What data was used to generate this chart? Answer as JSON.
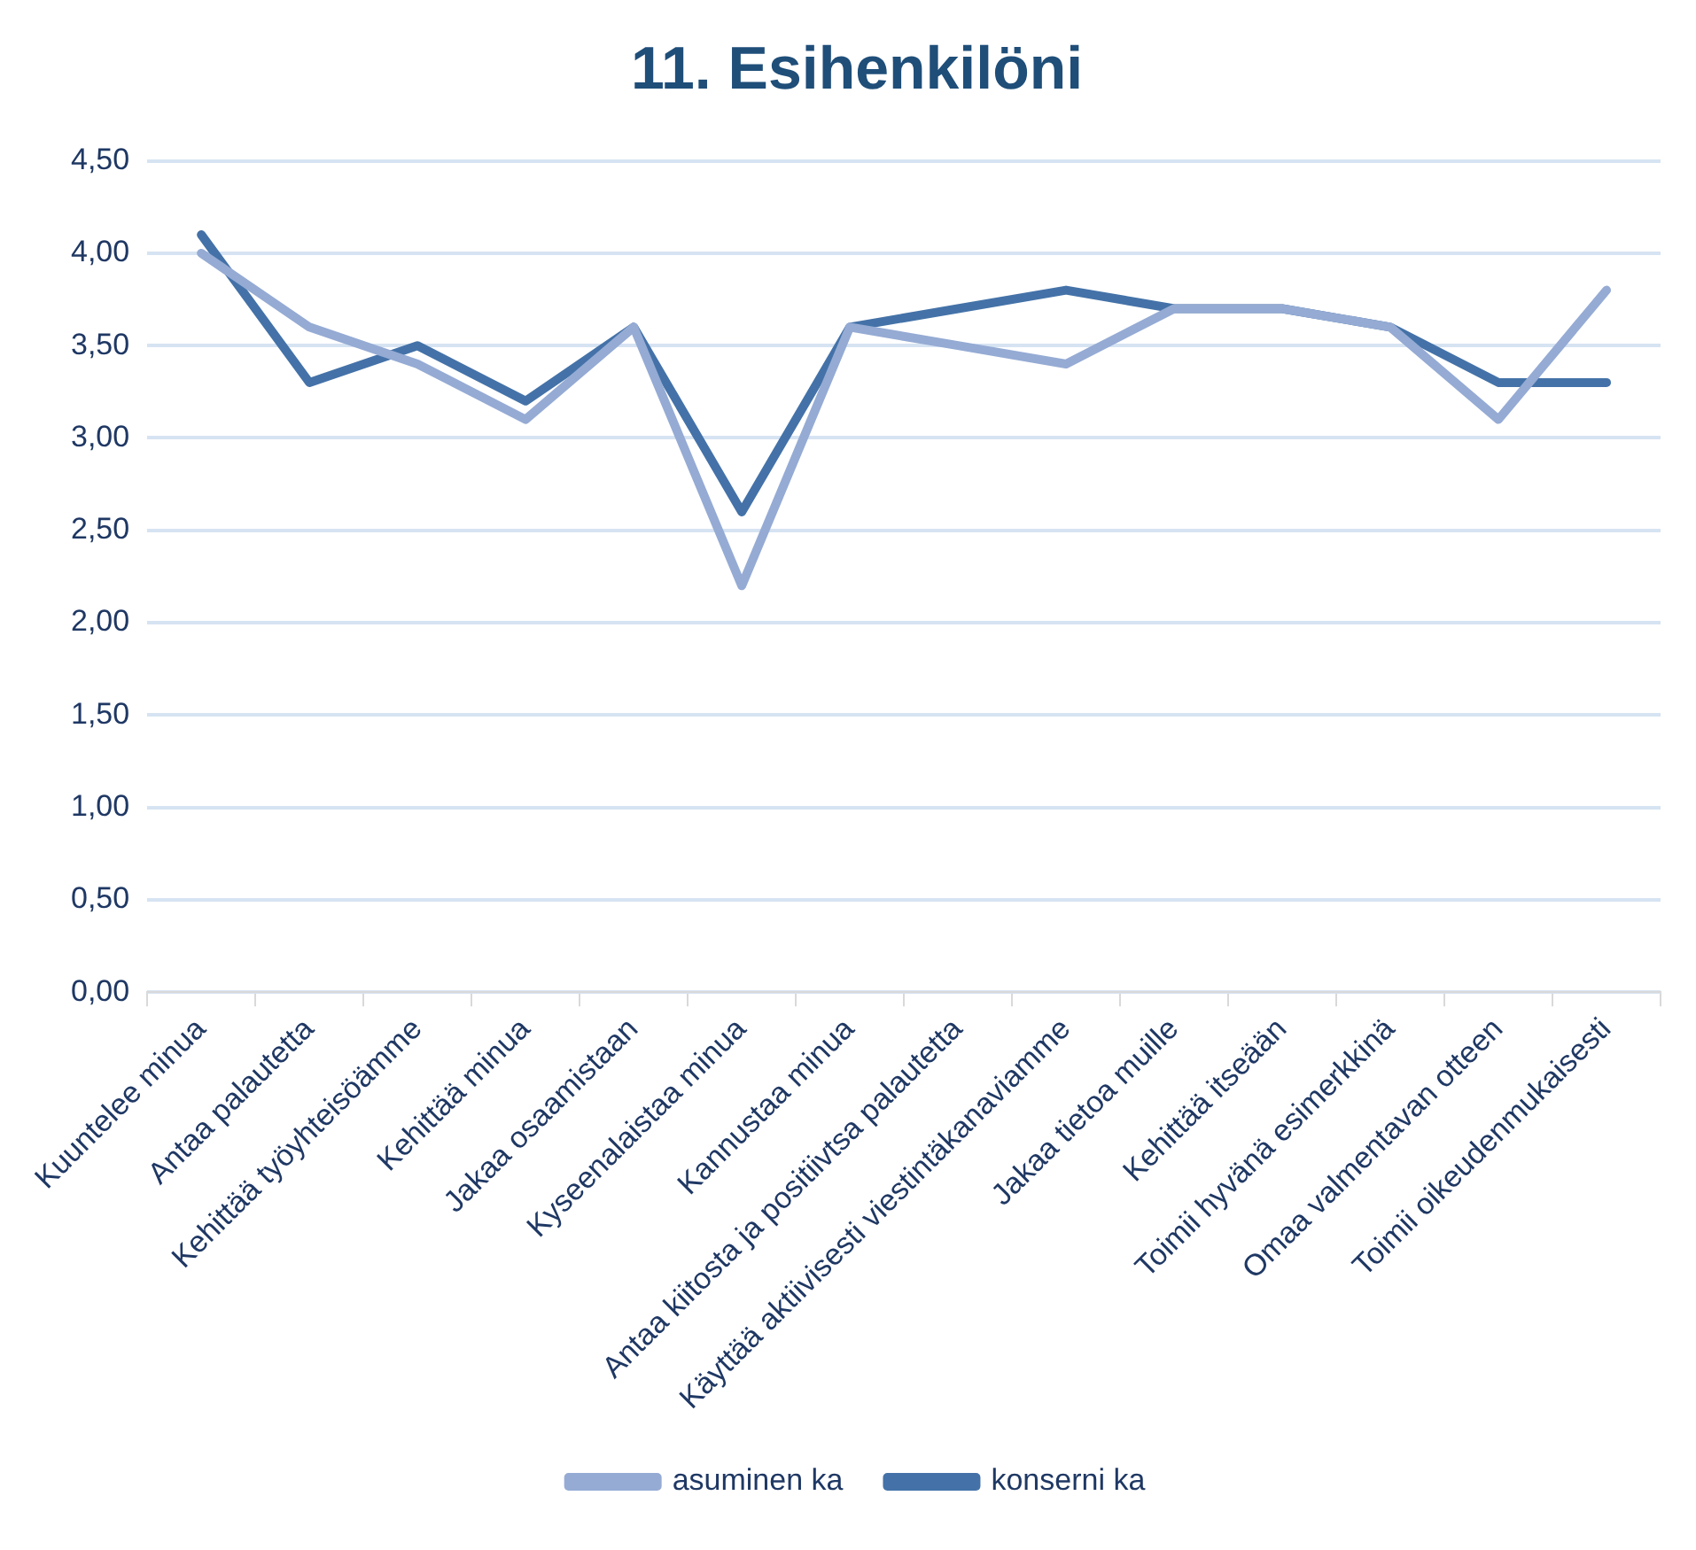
{
  "chart_data": {
    "type": "line",
    "title": "11. Esihenkilöni",
    "categories": [
      "Kuuntelee minua",
      "Antaa palautetta",
      "Kehittää työyhteisöämme",
      "Kehittää minua",
      "Jakaa osaamistaan",
      "Kyseenalaistaa minua",
      "Kannustaa minua",
      "Antaa kiitosta ja positiivtsa palautetta",
      "Käyttää aktiivisesti viestintäkanaviamme",
      "Jakaa tietoa muille",
      "Kehittää itseään",
      "Toimii hyvänä esimerkkinä",
      "Omaa valmentavan otteen",
      "Toimii oikeudenmukaisesti"
    ],
    "series": [
      {
        "name": "asuminen ka",
        "color": "#95abd4",
        "values": [
          4.0,
          3.6,
          3.4,
          3.1,
          3.6,
          2.2,
          3.6,
          3.5,
          3.4,
          3.7,
          3.7,
          3.6,
          3.1,
          3.8
        ]
      },
      {
        "name": "konserni ka",
        "color": "#4472a8",
        "values": [
          4.1,
          3.3,
          3.5,
          3.2,
          3.6,
          2.6,
          3.6,
          3.7,
          3.8,
          3.7,
          3.7,
          3.6,
          3.3,
          3.3
        ]
      }
    ],
    "ylim": [
      0,
      4.5
    ],
    "yticks": [
      {
        "value": 0,
        "label": "0,00"
      },
      {
        "value": 0.5,
        "label": "0,50"
      },
      {
        "value": 1,
        "label": "1,00"
      },
      {
        "value": 1.5,
        "label": "1,50"
      },
      {
        "value": 2,
        "label": "2,00"
      },
      {
        "value": 2.5,
        "label": "2,50"
      },
      {
        "value": 3,
        "label": "3,00"
      },
      {
        "value": 3.5,
        "label": "3,50"
      },
      {
        "value": 4,
        "label": "4,00"
      },
      {
        "value": 4.5,
        "label": "4,50"
      }
    ],
    "grid": "y",
    "legend": "bottom",
    "marker": "none",
    "line_style": "solid"
  }
}
